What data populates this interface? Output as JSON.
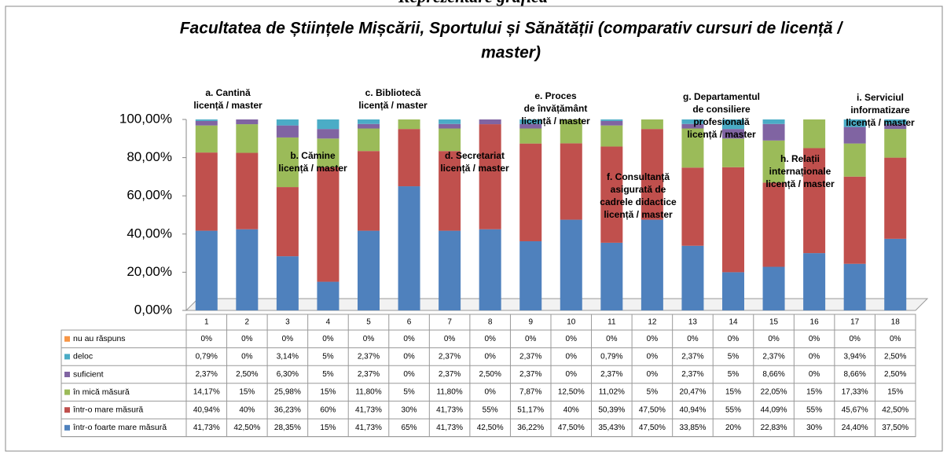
{
  "chart_data": {
    "type": "stacked_bar",
    "heading": "Reprezentare grafică",
    "title": "Facultatea de Științele Mișcării, Sportului și Sănătății (comparativ cursuri de licență /",
    "title_line2": "master)",
    "categories": [
      "1",
      "2",
      "3",
      "4",
      "5",
      "6",
      "7",
      "8",
      "9",
      "10",
      "11",
      "12",
      "13",
      "14",
      "15",
      "16",
      "17",
      "18"
    ],
    "ylim": [
      0,
      100
    ],
    "yticks": [
      {
        "value": 0,
        "label": "0,00%"
      },
      {
        "value": 20,
        "label": "20,00%"
      },
      {
        "value": 40,
        "label": "40,00%"
      },
      {
        "value": 60,
        "label": "60,00%"
      },
      {
        "value": 80,
        "label": "80,00%"
      },
      {
        "value": 100,
        "label": "100,00%"
      }
    ],
    "series": [
      {
        "name": "nu au răspuns",
        "color": "#f79646",
        "values": [
          0,
          0,
          0,
          0,
          0,
          0,
          0,
          0,
          0,
          0,
          0,
          0,
          0,
          0,
          0,
          0,
          0,
          0
        ],
        "value_labels": [
          "0%",
          "0%",
          "0%",
          "0%",
          "0%",
          "0%",
          "0%",
          "0%",
          "0%",
          "0%",
          "0%",
          "0%",
          "0%",
          "0%",
          "0%",
          "0%",
          "0%",
          "0%"
        ]
      },
      {
        "name": "deloc",
        "color": "#4bacc6",
        "values": [
          0.79,
          0,
          3.14,
          5,
          2.37,
          0,
          2.37,
          0,
          2.37,
          0,
          0.79,
          0,
          2.37,
          5,
          2.37,
          0,
          3.94,
          2.5
        ],
        "value_labels": [
          "0,79%",
          "0%",
          "3,14%",
          "5%",
          "2,37%",
          "0%",
          "2,37%",
          "0%",
          "2,37%",
          "0%",
          "0,79%",
          "0%",
          "2,37%",
          "5%",
          "2,37%",
          "0%",
          "3,94%",
          "2,50%"
        ]
      },
      {
        "name": "suficient",
        "color": "#8064a2",
        "values": [
          2.37,
          2.5,
          6.3,
          5,
          2.37,
          0,
          2.37,
          2.5,
          2.37,
          0,
          2.37,
          0,
          2.37,
          5,
          8.66,
          0,
          8.66,
          2.5
        ],
        "value_labels": [
          "2,37%",
          "2,50%",
          "6,30%",
          "5%",
          "2,37%",
          "0%",
          "2,37%",
          "2,50%",
          "2,37%",
          "0%",
          "2,37%",
          "0%",
          "2,37%",
          "5%",
          "8,66%",
          "0%",
          "8,66%",
          "2,50%"
        ]
      },
      {
        "name": "în mică măsură",
        "color": "#9bbb59",
        "values": [
          14.17,
          15,
          25.98,
          15,
          11.8,
          5,
          11.8,
          0,
          7.87,
          12.5,
          11.02,
          5,
          20.47,
          15,
          22.05,
          15,
          17.33,
          15
        ],
        "value_labels": [
          "14,17%",
          "15%",
          "25,98%",
          "15%",
          "11,80%",
          "5%",
          "11,80%",
          "0%",
          "7,87%",
          "12,50%",
          "11,02%",
          "5%",
          "20,47%",
          "15%",
          "22,05%",
          "15%",
          "17,33%",
          "15%"
        ]
      },
      {
        "name": "într-o mare măsură",
        "color": "#c0504d",
        "values": [
          40.94,
          40,
          36.23,
          60,
          41.73,
          30,
          41.73,
          55,
          51.17,
          40,
          50.39,
          47.5,
          40.94,
          55,
          44.09,
          55,
          45.67,
          42.5
        ],
        "value_labels": [
          "40,94%",
          "40%",
          "36,23%",
          "60%",
          "41,73%",
          "30%",
          "41,73%",
          "55%",
          "51,17%",
          "40%",
          "50,39%",
          "47,50%",
          "40,94%",
          "55%",
          "44,09%",
          "55%",
          "45,67%",
          "42,50%"
        ]
      },
      {
        "name": "într-o foarte mare măsură",
        "color": "#4f81bd",
        "values": [
          41.73,
          42.5,
          28.35,
          15,
          41.73,
          65,
          41.73,
          42.5,
          36.22,
          47.5,
          35.43,
          47.5,
          33.85,
          20,
          22.83,
          30,
          24.4,
          37.5
        ],
        "value_labels": [
          "41,73%",
          "42,50%",
          "28,35%",
          "15%",
          "41,73%",
          "65%",
          "41,73%",
          "42,50%",
          "36,22%",
          "47,50%",
          "35,43%",
          "47,50%",
          "33,85%",
          "20%",
          "22,83%",
          "30%",
          "24,40%",
          "37,50%"
        ]
      }
    ],
    "annotations": [
      [
        "a. Cantină",
        "licență / master"
      ],
      [
        "b. Cămine",
        "licență / master"
      ],
      [
        "c. Bibliotecă",
        "licență / master"
      ],
      [
        "d. Secretariat",
        "licență / master"
      ],
      [
        "e. Proces",
        "de învățământ",
        "licență / master"
      ],
      [
        "f. Consultanță",
        "asigurată de",
        "cadrele didactice",
        "licență / master"
      ],
      [
        "g. Departamentul",
        "de consiliere",
        "profesională",
        "licență / master"
      ],
      [
        "h. Relații",
        "internaționale",
        "licență / master"
      ],
      [
        "i. Serviciul",
        "informatizare",
        "licență / master"
      ]
    ]
  }
}
